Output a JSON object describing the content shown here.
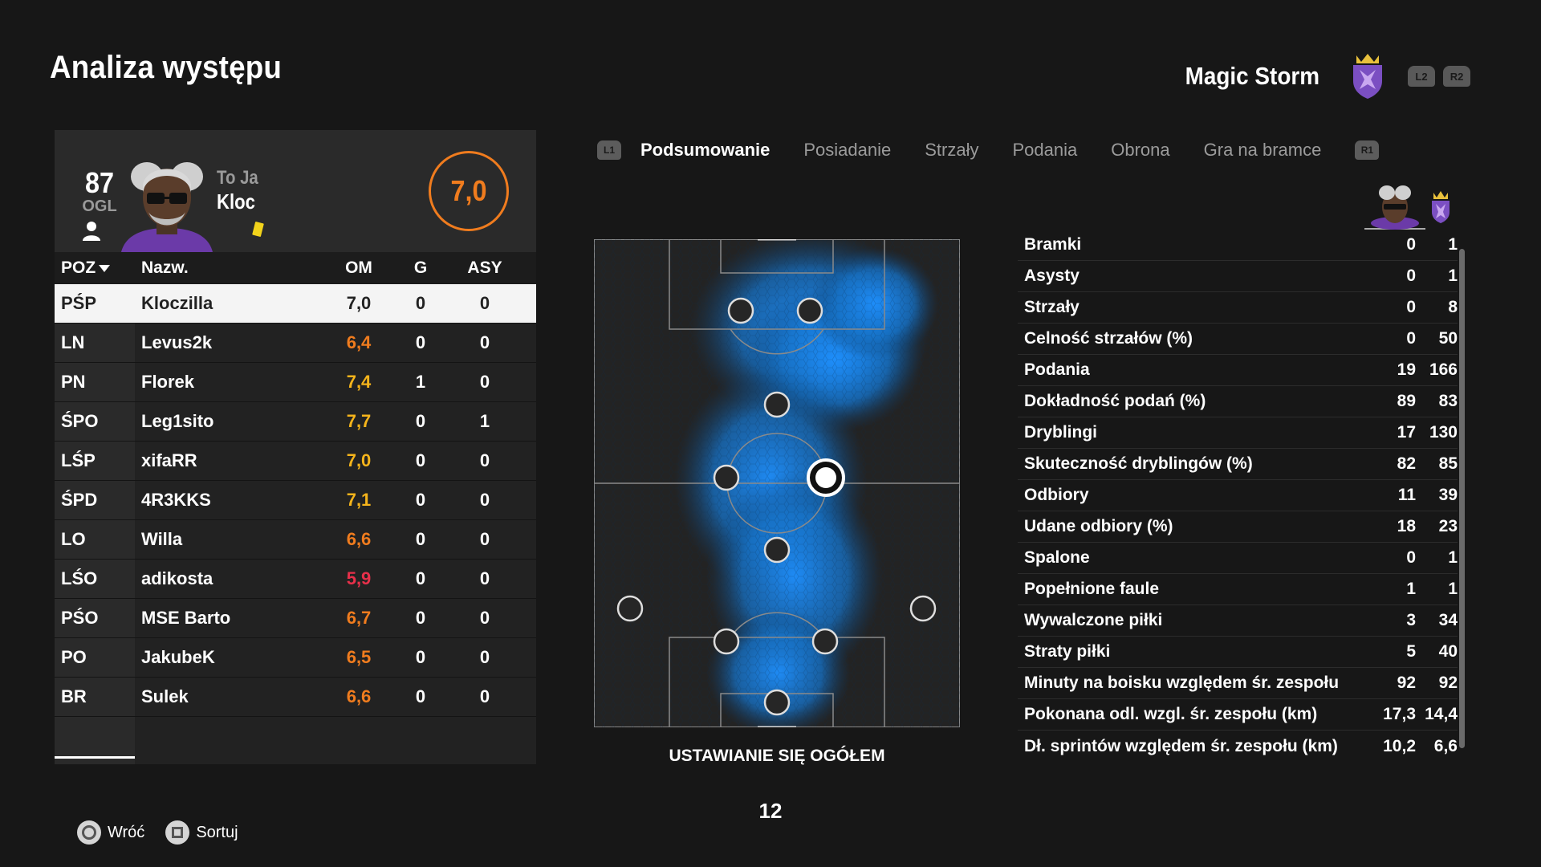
{
  "page_title": "Analiza występu",
  "team": {
    "name": "Magic Storm",
    "crest_icon": "team-crest-icon",
    "buttons": [
      "L2",
      "R2"
    ]
  },
  "player": {
    "overall": "87",
    "overall_label": "OGL",
    "subtitle": "To Ja",
    "name": "Kloc",
    "rating": "7,0",
    "card": "yellow"
  },
  "table": {
    "headers": {
      "pos": "POZ",
      "name": "Nazw.",
      "om": "OM",
      "g": "G",
      "asy": "ASY"
    },
    "rows": [
      {
        "pos": "PŚP",
        "name": "Kloczilla",
        "om": "7,0",
        "g": "0",
        "asy": "0",
        "om_color": "plain",
        "selected": true
      },
      {
        "pos": "LN",
        "name": "Levus2k",
        "om": "6,4",
        "g": "0",
        "asy": "0",
        "om_color": "orange"
      },
      {
        "pos": "PN",
        "name": "Florek",
        "om": "7,4",
        "g": "1",
        "asy": "0",
        "om_color": "yellow"
      },
      {
        "pos": "ŚPO",
        "name": "Leg1sito",
        "om": "7,7",
        "g": "0",
        "asy": "1",
        "om_color": "yellow"
      },
      {
        "pos": "LŚP",
        "name": "xifaRR",
        "om": "7,0",
        "g": "0",
        "asy": "0",
        "om_color": "yellow"
      },
      {
        "pos": "ŚPD",
        "name": "4R3KKS",
        "om": "7,1",
        "g": "0",
        "asy": "0",
        "om_color": "yellow"
      },
      {
        "pos": "LO",
        "name": "Willa",
        "om": "6,6",
        "g": "0",
        "asy": "0",
        "om_color": "orange"
      },
      {
        "pos": "LŚO",
        "name": "adikosta",
        "om": "5,9",
        "g": "0",
        "asy": "0",
        "om_color": "red"
      },
      {
        "pos": "PŚO",
        "name": "MSE Barto",
        "om": "6,7",
        "g": "0",
        "asy": "0",
        "om_color": "orange"
      },
      {
        "pos": "PO",
        "name": "JakubeK",
        "om": "6,5",
        "g": "0",
        "asy": "0",
        "om_color": "orange"
      },
      {
        "pos": "BR",
        "name": "Sulek",
        "om": "6,6",
        "g": "0",
        "asy": "0",
        "om_color": "orange"
      }
    ]
  },
  "tabs": {
    "left_button": "L1",
    "right_button": "R1",
    "items": [
      "Podsumowanie",
      "Posiadanie",
      "Strzały",
      "Podania",
      "Obrona",
      "Gra na bramce"
    ],
    "active": 0
  },
  "pitch": {
    "caption": "USTAWIANIE SIĘ OGÓŁEM"
  },
  "page_number": "12",
  "stats": [
    {
      "label": "Bramki",
      "player": "0",
      "team": "1"
    },
    {
      "label": "Asysty",
      "player": "0",
      "team": "1"
    },
    {
      "label": "Strzały",
      "player": "0",
      "team": "8"
    },
    {
      "label": "Celność strzałów (%)",
      "player": "0",
      "team": "50"
    },
    {
      "label": "Podania",
      "player": "19",
      "team": "166"
    },
    {
      "label": "Dokładność podań (%)",
      "player": "89",
      "team": "83"
    },
    {
      "label": "Dryblingi",
      "player": "17",
      "team": "130"
    },
    {
      "label": "Skuteczność dryblingów (%)",
      "player": "82",
      "team": "85"
    },
    {
      "label": "Odbiory",
      "player": "11",
      "team": "39"
    },
    {
      "label": "Udane odbiory (%)",
      "player": "18",
      "team": "23"
    },
    {
      "label": "Spalone",
      "player": "0",
      "team": "1"
    },
    {
      "label": "Popełnione faule",
      "player": "1",
      "team": "1"
    },
    {
      "label": "Wywalczone piłki",
      "player": "3",
      "team": "34"
    },
    {
      "label": "Straty piłki",
      "player": "5",
      "team": "40"
    },
    {
      "label": "Minuty na boisku względem śr. zespołu",
      "player": "92",
      "team": "92"
    },
    {
      "label": "Pokonana odl. wzgl. śr. zespołu (km)",
      "player": "17,3",
      "team": "14,4"
    },
    {
      "label": "Dł. sprintów względem śr. zespołu (km)",
      "player": "10,2",
      "team": "6,6"
    }
  ],
  "footer": [
    {
      "label": "Wróć",
      "icon": "circle-button-icon"
    },
    {
      "label": "Sortuj",
      "icon": "square-button-icon"
    }
  ],
  "colors": {
    "accent_orange": "#f07c1e",
    "rating_yellow": "#f5b41b",
    "rating_red": "#e8304a",
    "heat_blue": "#1e90ff",
    "background": "#171717"
  }
}
